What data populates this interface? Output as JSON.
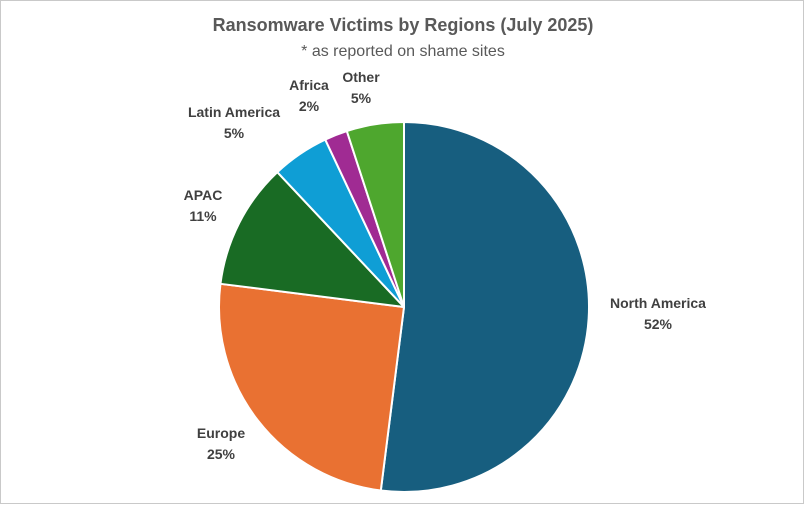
{
  "chart_data": {
    "type": "pie",
    "title": "Ransomware Victims by Regions (July 2025)",
    "subtitle": "* as reported on shame sites",
    "slices": [
      {
        "label": "North America",
        "value": 52,
        "value_label": "52%",
        "color": "#175e7f"
      },
      {
        "label": "Europe",
        "value": 25,
        "value_label": "25%",
        "color": "#e97132"
      },
      {
        "label": "APAC",
        "value": 11,
        "value_label": "11%",
        "color": "#196b24"
      },
      {
        "label": "Latin America",
        "value": 5,
        "value_label": "5%",
        "color": "#0f9ed5"
      },
      {
        "label": "Africa",
        "value": 2,
        "value_label": "2%",
        "color": "#a02b93"
      },
      {
        "label": "Other",
        "value": 5,
        "value_label": "5%",
        "color": "#4ea72e"
      }
    ],
    "start_angle_deg": 0,
    "direction": "clockwise",
    "legend": "none",
    "data_labels": "outside"
  }
}
